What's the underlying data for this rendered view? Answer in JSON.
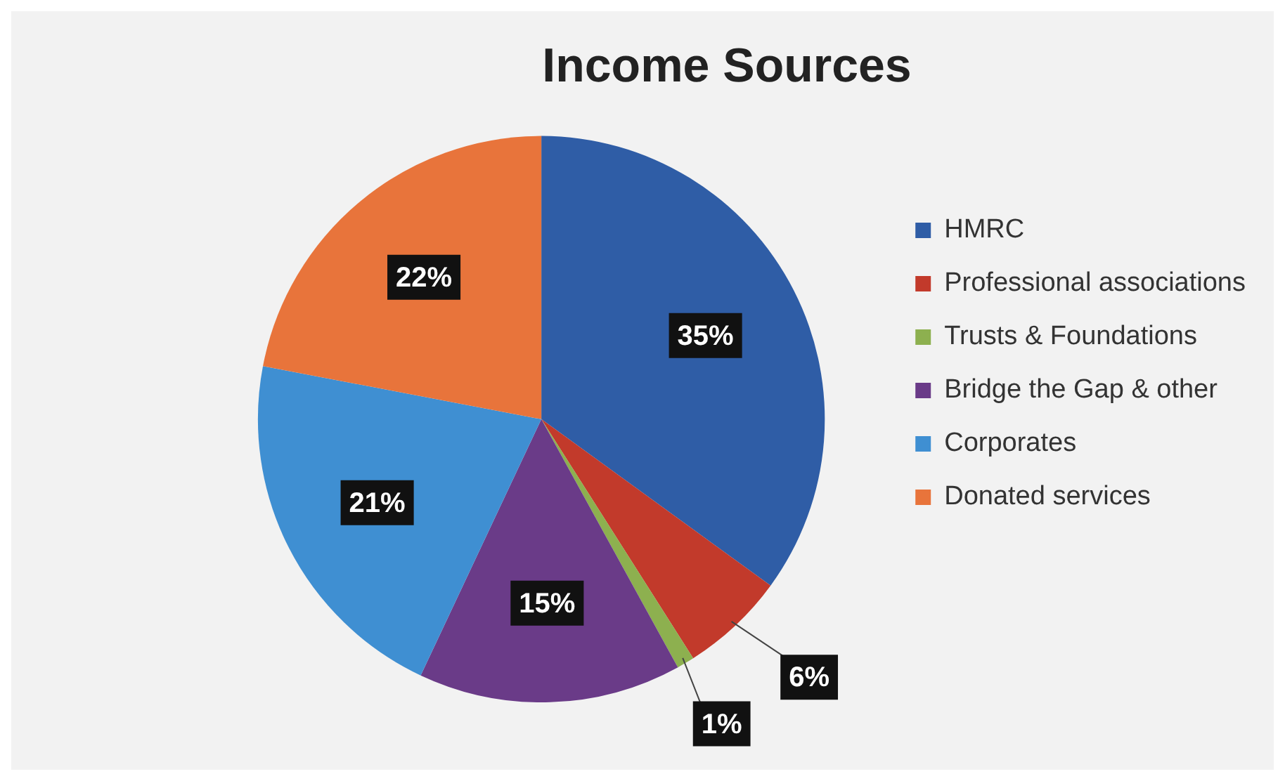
{
  "chart_data": {
    "type": "pie",
    "title": "Income Sources",
    "categories": [
      "HMRC",
      "Professional associations",
      "Trusts & Foundations",
      "Bridge the Gap & other",
      "Corporates",
      "Donated services"
    ],
    "values": [
      35,
      6,
      1,
      15,
      21,
      22
    ],
    "colors": [
      "#2f5da6",
      "#c23a2b",
      "#8db04f",
      "#6a3b88",
      "#3f8fd2",
      "#e8743b"
    ],
    "value_labels": [
      "35%",
      "6%",
      "1%",
      "15%",
      "21%",
      "22%"
    ],
    "legend": "right"
  }
}
